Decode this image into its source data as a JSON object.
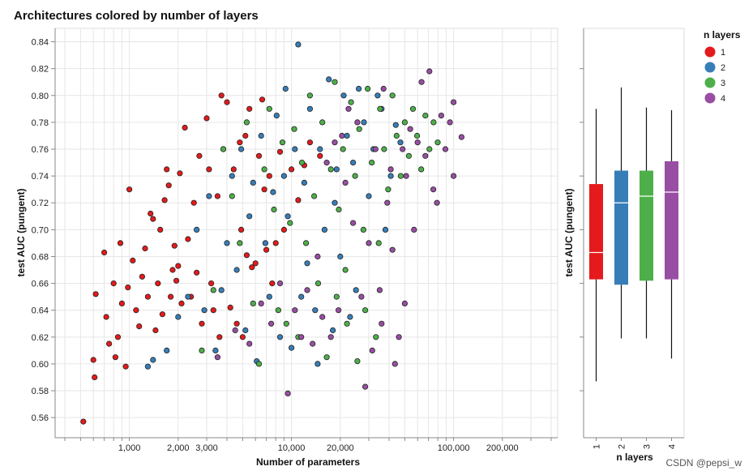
{
  "chart_data": [
    {
      "type": "scatter",
      "title": "Architectures colored by number of layers",
      "xlabel": "Number of parameters",
      "ylabel": "test AUC (pungent)",
      "x_scale": "log",
      "xlim": [
        400,
        400000
      ],
      "ylim": [
        0.545,
        0.85
      ],
      "x_tick_values": [
        1000,
        2000,
        3000,
        10000,
        20000,
        100000,
        200000
      ],
      "x_tick_labels": [
        "1,000",
        "2,000",
        "3,000",
        "10,000",
        "20,000",
        "100,000",
        "200,000"
      ],
      "y_ticks": [
        "0.56",
        "0.58",
        "0.60",
        "0.62",
        "0.64",
        "0.66",
        "0.68",
        "0.70",
        "0.72",
        "0.74",
        "0.76",
        "0.78",
        "0.80",
        "0.82",
        "0.84"
      ],
      "y_tick_values": [
        0.56,
        0.58,
        0.6,
        0.62,
        0.64,
        0.66,
        0.68,
        0.7,
        0.72,
        0.74,
        0.76,
        0.78,
        0.8,
        0.82,
        0.84
      ],
      "grid": true,
      "series": [
        {
          "name": "1",
          "color": "#e41a1c",
          "points": [
            [
              520,
              0.557
            ],
            [
              600,
              0.603
            ],
            [
              610,
              0.59
            ],
            [
              620,
              0.652
            ],
            [
              700,
              0.683
            ],
            [
              720,
              0.635
            ],
            [
              750,
              0.615
            ],
            [
              800,
              0.66
            ],
            [
              820,
              0.605
            ],
            [
              850,
              0.62
            ],
            [
              880,
              0.69
            ],
            [
              900,
              0.645
            ],
            [
              950,
              0.598
            ],
            [
              980,
              0.657
            ],
            [
              1000,
              0.73
            ],
            [
              1050,
              0.677
            ],
            [
              1100,
              0.64
            ],
            [
              1150,
              0.628
            ],
            [
              1200,
              0.665
            ],
            [
              1250,
              0.686
            ],
            [
              1300,
              0.65
            ],
            [
              1350,
              0.712
            ],
            [
              1400,
              0.708
            ],
            [
              1450,
              0.625
            ],
            [
              1500,
              0.66
            ],
            [
              1550,
              0.7
            ],
            [
              1600,
              0.637
            ],
            [
              1650,
              0.722
            ],
            [
              1700,
              0.745
            ],
            [
              1750,
              0.733
            ],
            [
              1800,
              0.65
            ],
            [
              1850,
              0.67
            ],
            [
              1900,
              0.688
            ],
            [
              1950,
              0.662
            ],
            [
              2000,
              0.673
            ],
            [
              2050,
              0.742
            ],
            [
              2100,
              0.645
            ],
            [
              2200,
              0.776
            ],
            [
              2300,
              0.693
            ],
            [
              2400,
              0.65
            ],
            [
              2500,
              0.72
            ],
            [
              2600,
              0.668
            ],
            [
              2700,
              0.755
            ],
            [
              2800,
              0.63
            ],
            [
              3000,
              0.783
            ],
            [
              3100,
              0.745
            ],
            [
              3200,
              0.66
            ],
            [
              3300,
              0.64
            ],
            [
              3500,
              0.725
            ],
            [
              3600,
              0.62
            ],
            [
              3700,
              0.8
            ],
            [
              3800,
              0.76
            ],
            [
              4000,
              0.795
            ],
            [
              4200,
              0.642
            ],
            [
              4400,
              0.745
            ],
            [
              4600,
              0.63
            ],
            [
              4800,
              0.765
            ],
            [
              5000,
              0.62
            ],
            [
              5200,
              0.77
            ],
            [
              5500,
              0.79
            ],
            [
              5700,
              0.672
            ],
            [
              6000,
              0.675
            ],
            [
              6300,
              0.755
            ],
            [
              6600,
              0.797
            ],
            [
              7000,
              0.685
            ],
            [
              7300,
              0.74
            ],
            [
              7600,
              0.66
            ],
            [
              8000,
              0.69
            ],
            [
              8500,
              0.758
            ],
            [
              9000,
              0.7
            ],
            [
              10000,
              0.745
            ],
            [
              11000,
              0.722
            ],
            [
              12000,
              0.748
            ],
            [
              13000,
              0.765
            ],
            [
              15000,
              0.755
            ],
            [
              5300,
              0.681
            ],
            [
              4900,
              0.7
            ],
            [
              6800,
              0.73
            ]
          ]
        },
        {
          "name": "2",
          "color": "#377eb8",
          "points": [
            [
              1300,
              0.598
            ],
            [
              1400,
              0.603
            ],
            [
              1700,
              0.61
            ],
            [
              2000,
              0.635
            ],
            [
              2300,
              0.65
            ],
            [
              2600,
              0.7
            ],
            [
              2900,
              0.64
            ],
            [
              3100,
              0.725
            ],
            [
              3400,
              0.61
            ],
            [
              3700,
              0.655
            ],
            [
              4000,
              0.69
            ],
            [
              4300,
              0.74
            ],
            [
              4600,
              0.67
            ],
            [
              4900,
              0.76
            ],
            [
              5200,
              0.625
            ],
            [
              5500,
              0.71
            ],
            [
              5800,
              0.735
            ],
            [
              6100,
              0.602
            ],
            [
              6500,
              0.77
            ],
            [
              6900,
              0.69
            ],
            [
              7300,
              0.65
            ],
            [
              7700,
              0.728
            ],
            [
              8100,
              0.785
            ],
            [
              8500,
              0.62
            ],
            [
              9000,
              0.74
            ],
            [
              9500,
              0.71
            ],
            [
              10000,
              0.612
            ],
            [
              10500,
              0.76
            ],
            [
              11000,
              0.838
            ],
            [
              11500,
              0.65
            ],
            [
              12000,
              0.735
            ],
            [
              13000,
              0.79
            ],
            [
              14000,
              0.64
            ],
            [
              15000,
              0.76
            ],
            [
              16000,
              0.7
            ],
            [
              17000,
              0.812
            ],
            [
              18000,
              0.625
            ],
            [
              19000,
              0.745
            ],
            [
              20000,
              0.68
            ],
            [
              21000,
              0.8
            ],
            [
              22000,
              0.77
            ],
            [
              23000,
              0.635
            ],
            [
              24000,
              0.75
            ],
            [
              26000,
              0.805
            ],
            [
              28000,
              0.78
            ],
            [
              30000,
              0.725
            ],
            [
              32000,
              0.76
            ],
            [
              34000,
              0.8
            ],
            [
              36000,
              0.79
            ],
            [
              38000,
              0.7
            ],
            [
              41000,
              0.74
            ],
            [
              44000,
              0.778
            ],
            [
              47000,
              0.765
            ],
            [
              18500,
              0.72
            ],
            [
              14500,
              0.6
            ],
            [
              25000,
              0.655
            ],
            [
              12500,
              0.675
            ],
            [
              9200,
              0.805
            ]
          ]
        },
        {
          "name": "3",
          "color": "#4daf4a",
          "points": [
            [
              2800,
              0.61
            ],
            [
              3300,
              0.655
            ],
            [
              3800,
              0.76
            ],
            [
              4300,
              0.725
            ],
            [
              4800,
              0.69
            ],
            [
              5300,
              0.78
            ],
            [
              5800,
              0.645
            ],
            [
              6300,
              0.6
            ],
            [
              6800,
              0.745
            ],
            [
              7300,
              0.79
            ],
            [
              7800,
              0.715
            ],
            [
              8300,
              0.64
            ],
            [
              8800,
              0.765
            ],
            [
              9300,
              0.63
            ],
            [
              9800,
              0.705
            ],
            [
              10400,
              0.775
            ],
            [
              11000,
              0.62
            ],
            [
              11600,
              0.75
            ],
            [
              12300,
              0.69
            ],
            [
              13000,
              0.8
            ],
            [
              13800,
              0.725
            ],
            [
              14600,
              0.66
            ],
            [
              15500,
              0.78
            ],
            [
              16500,
              0.605
            ],
            [
              17500,
              0.745
            ],
            [
              18500,
              0.81
            ],
            [
              19600,
              0.715
            ],
            [
              20800,
              0.76
            ],
            [
              22000,
              0.63
            ],
            [
              23300,
              0.795
            ],
            [
              24700,
              0.74
            ],
            [
              26200,
              0.775
            ],
            [
              27800,
              0.7
            ],
            [
              29500,
              0.805
            ],
            [
              31300,
              0.75
            ],
            [
              33200,
              0.62
            ],
            [
              35200,
              0.79
            ],
            [
              37300,
              0.76
            ],
            [
              39500,
              0.73
            ],
            [
              42000,
              0.8
            ],
            [
              44500,
              0.77
            ],
            [
              47200,
              0.74
            ],
            [
              50000,
              0.78
            ],
            [
              53000,
              0.755
            ],
            [
              56200,
              0.79
            ],
            [
              59600,
              0.77
            ],
            [
              63200,
              0.745
            ],
            [
              67000,
              0.785
            ],
            [
              71000,
              0.76
            ],
            [
              75300,
              0.78
            ],
            [
              79800,
              0.765
            ],
            [
              21500,
              0.67
            ],
            [
              28500,
              0.64
            ],
            [
              34500,
              0.69
            ],
            [
              25500,
              0.602
            ],
            [
              19000,
              0.65
            ]
          ]
        },
        {
          "name": "4",
          "color": "#984ea3",
          "points": [
            [
              3500,
              0.605
            ],
            [
              4500,
              0.625
            ],
            [
              5500,
              0.615
            ],
            [
              6500,
              0.645
            ],
            [
              7500,
              0.63
            ],
            [
              8500,
              0.66
            ],
            [
              9500,
              0.578
            ],
            [
              10500,
              0.64
            ],
            [
              11500,
              0.62
            ],
            [
              12500,
              0.655
            ],
            [
              13500,
              0.615
            ],
            [
              14500,
              0.68
            ],
            [
              15500,
              0.635
            ],
            [
              16500,
              0.75
            ],
            [
              17500,
              0.62
            ],
            [
              18500,
              0.765
            ],
            [
              19500,
              0.64
            ],
            [
              20500,
              0.77
            ],
            [
              21500,
              0.735
            ],
            [
              22500,
              0.79
            ],
            [
              24000,
              0.705
            ],
            [
              25500,
              0.78
            ],
            [
              27000,
              0.65
            ],
            [
              28500,
              0.583
            ],
            [
              30000,
              0.69
            ],
            [
              31500,
              0.61
            ],
            [
              33000,
              0.76
            ],
            [
              35000,
              0.655
            ],
            [
              37000,
              0.805
            ],
            [
              39000,
              0.72
            ],
            [
              41000,
              0.745
            ],
            [
              43500,
              0.6
            ],
            [
              46000,
              0.62
            ],
            [
              48500,
              0.76
            ],
            [
              51000,
              0.74
            ],
            [
              54000,
              0.775
            ],
            [
              57000,
              0.7
            ],
            [
              60000,
              0.765
            ],
            [
              63500,
              0.81
            ],
            [
              67000,
              0.755
            ],
            [
              71000,
              0.818
            ],
            [
              75000,
              0.73
            ],
            [
              79000,
              0.72
            ],
            [
              84000,
              0.785
            ],
            [
              89000,
              0.76
            ],
            [
              95000,
              0.78
            ],
            [
              100000,
              0.795
            ],
            [
              100000,
              0.74
            ],
            [
              112000,
              0.769
            ],
            [
              50000,
              0.645
            ],
            [
              42000,
              0.685
            ],
            [
              36000,
              0.63
            ]
          ]
        }
      ]
    },
    {
      "type": "boxplot",
      "xlabel": "n layers",
      "ylabel": "test AUC (pungent)",
      "ylim": [
        0.545,
        0.85
      ],
      "categories": [
        "1",
        "2",
        "3",
        "4"
      ],
      "boxes": [
        {
          "name": "1",
          "color": "#e41a1c",
          "min": 0.587,
          "q1": 0.663,
          "median": 0.683,
          "q3": 0.734,
          "max": 0.79
        },
        {
          "name": "2",
          "color": "#377eb8",
          "min": 0.619,
          "q1": 0.659,
          "median": 0.72,
          "q3": 0.744,
          "max": 0.806
        },
        {
          "name": "3",
          "color": "#4daf4a",
          "min": 0.619,
          "q1": 0.662,
          "median": 0.725,
          "q3": 0.744,
          "max": 0.791
        },
        {
          "name": "4",
          "color": "#984ea3",
          "min": 0.604,
          "q1": 0.663,
          "median": 0.728,
          "q3": 0.751,
          "max": 0.789
        }
      ]
    }
  ],
  "legend": {
    "title": "n layers",
    "items": [
      {
        "label": "1",
        "color": "#e41a1c"
      },
      {
        "label": "2",
        "color": "#377eb8"
      },
      {
        "label": "3",
        "color": "#4daf4a"
      },
      {
        "label": "4",
        "color": "#984ea3"
      }
    ]
  },
  "watermark": "CSDN @pepsi_w"
}
